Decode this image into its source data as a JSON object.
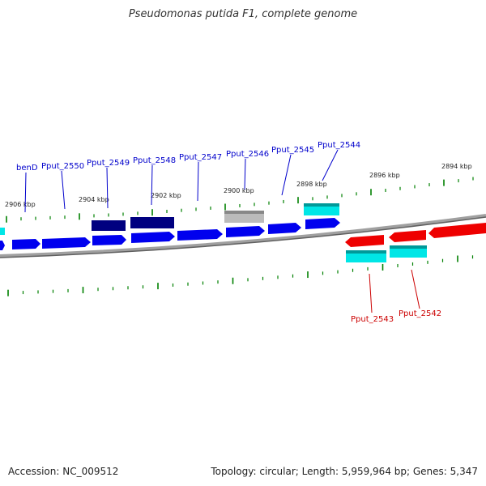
{
  "title": "Pseudomonas putida F1, complete genome",
  "footer": {
    "accession": "Accession: NC_009512",
    "summary": "Topology: circular; Length: 5,959,964 bp; Genes: 5,347"
  },
  "colors": {
    "forward_gene": "#0000ee",
    "forward_gene_dark": "#000080",
    "hypothetical_gene": "#bbbbbb",
    "reverse_gene": "#ee0000",
    "cds_feature": "#00e6e6",
    "backbone": "#808080",
    "ticks": "#008000"
  },
  "kbp_labels": [
    "2906 kbp",
    "2904 kbp",
    "2902 kbp",
    "2900 kbp",
    "2898 kbp",
    "2896 kbp",
    "2894 kbp"
  ],
  "gene_labels_forward": [
    "benD",
    "Pput_2550",
    "Pput_2549",
    "Pput_2548",
    "Pput_2547",
    "Pput_2546",
    "Pput_2545",
    "Pput_2544"
  ],
  "gene_labels_reverse": [
    "Pput_2543",
    "Pput_2542"
  ]
}
